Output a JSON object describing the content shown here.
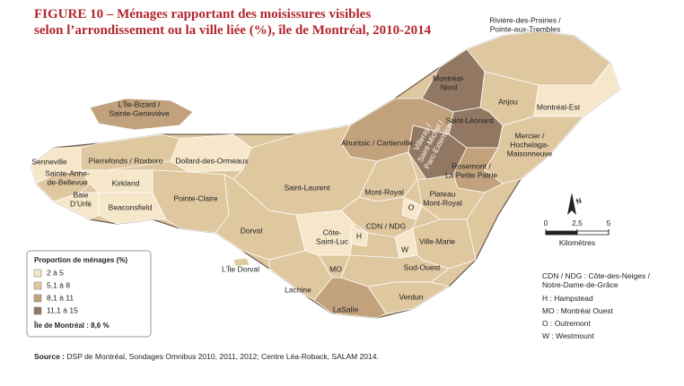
{
  "header": {
    "title": [
      "FIGURE 10 – Ménages rapportant des moisissures visibles",
      "selon l’arrondissement ou la ville liée (%), île de Montréal, 2010-2014"
    ]
  },
  "legend": {
    "title": "Proportion de ménages (%)",
    "items": [
      {
        "label": "2 à 5",
        "color": "#f6e7ca"
      },
      {
        "label": "5,1 à 8",
        "color": "#dfc7a0"
      },
      {
        "label": "8,1 à 11",
        "color": "#c2a27d"
      },
      {
        "label": "11,1 à 15",
        "color": "#927862"
      }
    ],
    "note": "Île de Montréal : 8,6 %"
  },
  "regions": [
    {
      "label": [
        "Rivière-des-Prairies /",
        "Pointe-aux-Trembles"
      ],
      "color": "#dfc7a0"
    },
    {
      "label": [
        "Montréal-",
        "Nord"
      ],
      "color": "#927862"
    },
    {
      "label": [
        "Anjou"
      ],
      "color": "#dfc7a0"
    },
    {
      "label": [
        "Montréal-Est"
      ],
      "color": "#f6e7ca"
    },
    {
      "label": [
        "Saint-Léonard"
      ],
      "color": "#927862"
    },
    {
      "label": [
        "Villeray /",
        "Saint-Michel /",
        "Parc-Extension"
      ],
      "color": "#927862"
    },
    {
      "label": [
        "Ahuntsic / Cartierville"
      ],
      "color": "#c2a27d"
    },
    {
      "label": [
        "L’Île-Bizard /",
        "Sainte-Geneviève"
      ],
      "color": "#c2a27d"
    },
    {
      "label": [
        "Mercier /",
        "Hochelaga-",
        "Maisonneuve"
      ],
      "color": "#dfc7a0"
    },
    {
      "label": [
        "Rosemont /",
        "La Petite Patrie"
      ],
      "color": "#c2a27d"
    },
    {
      "label": [
        "Senneville"
      ],
      "color": "#f6e7ca"
    },
    {
      "label": [
        "Pierrefonds / Roxboro"
      ],
      "color": "#dfc7a0"
    },
    {
      "label": [
        "Dollard-des-Ormeaux"
      ],
      "color": "#f6e7ca"
    },
    {
      "label": [
        "Sainte-Anne-",
        "de-Bellevue"
      ],
      "color": "#dfc7a0"
    },
    {
      "label": [
        "Kirkland"
      ],
      "color": "#f6e7ca"
    },
    {
      "label": [
        "Baie",
        "D’Urfé"
      ],
      "color": "#f6e7ca"
    },
    {
      "label": [
        "Beaconsfield"
      ],
      "color": "#f6e7ca"
    },
    {
      "label": [
        "Pointe-Claire"
      ],
      "color": "#dfc7a0"
    },
    {
      "label": [
        "Saint-Laurent"
      ],
      "color": "#dfc7a0"
    },
    {
      "label": [
        "Mont-Royal"
      ],
      "color": "#dfc7a0"
    },
    {
      "label": [
        "Plateau",
        "Mont-Royal"
      ],
      "color": "#dfc7a0"
    },
    {
      "label": [
        "CDN / NDG"
      ],
      "color": "#dfc7a0"
    },
    {
      "label": [
        "O"
      ],
      "color": "#f6e7ca"
    },
    {
      "label": [
        "Dorval"
      ],
      "color": "#dfc7a0"
    },
    {
      "label": [
        "Côte-",
        "Saint-Luc"
      ],
      "color": "#f6e7ca"
    },
    {
      "label": [
        "H"
      ],
      "color": "#f6e7ca"
    },
    {
      "label": [
        "W"
      ],
      "color": "#f6e7ca"
    },
    {
      "label": [
        "Ville-Marie"
      ],
      "color": "#dfc7a0"
    },
    {
      "label": [
        "L’Île Dorval"
      ],
      "color": "#dfc7a0"
    },
    {
      "label": [
        "Lachine"
      ],
      "color": "#dfc7a0"
    },
    {
      "label": [
        "MO"
      ],
      "color": "#dfc7a0"
    },
    {
      "label": [
        "Sud-Ouest"
      ],
      "color": "#dfc7a0"
    },
    {
      "label": [
        "Verdun"
      ],
      "color": "#dfc7a0"
    },
    {
      "label": [
        "LaSalle"
      ],
      "color": "#c2a27d"
    }
  ],
  "north": "N",
  "scale": {
    "ticks": [
      0,
      {
        "value": 2.5,
        "label": "2,5"
      },
      5
    ],
    "unit": "Kilomètres"
  },
  "abbreviations": [
    "CDN / NDG : Côte-des-Neiges /",
    "Notre-Dame-de-Grâce",
    "H : Hampstead",
    "MO : Montréal Ouest",
    "O : Outremont",
    "W : Westmount"
  ],
  "source": {
    "label": "Source :",
    "text": "DSP de Montréal, Sondages Omnibus 2010, 2011, 2012; Centre Léa-Roback, SALAM 2014."
  }
}
